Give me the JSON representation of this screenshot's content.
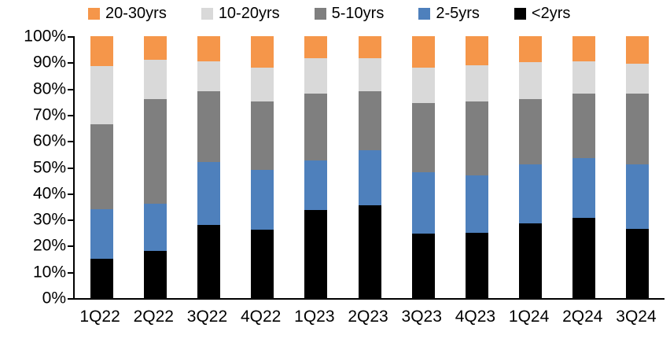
{
  "chart_data": {
    "type": "bar",
    "stacked": true,
    "percent": true,
    "title": "",
    "xlabel": "",
    "ylabel": "",
    "ylim": [
      0,
      100
    ],
    "grid": false,
    "legend_position": "top",
    "legend_order": [
      "20-30yrs",
      "10-20yrs",
      "5-10yrs",
      "2-5yrs",
      "<2yrs"
    ],
    "y_ticks": [
      "0%",
      "10%",
      "20%",
      "30%",
      "40%",
      "50%",
      "60%",
      "70%",
      "80%",
      "90%",
      "100%"
    ],
    "categories": [
      "1Q22",
      "2Q22",
      "3Q22",
      "4Q22",
      "1Q23",
      "2Q23",
      "3Q23",
      "4Q23",
      "1Q24",
      "2Q24",
      "3Q24"
    ],
    "series": [
      {
        "name": "<2yrs",
        "color": "#000000",
        "values": [
          15,
          18,
          28,
          26,
          33.5,
          35.5,
          24.5,
          25,
          28.5,
          30.5,
          26.5
        ]
      },
      {
        "name": "2-5yrs",
        "color": "#4E80BC",
        "values": [
          19,
          18,
          24,
          23,
          19,
          21,
          23.5,
          22,
          22.5,
          23,
          24.5
        ]
      },
      {
        "name": "5-10yrs",
        "color": "#7F7F7F",
        "values": [
          32.5,
          40,
          27,
          26,
          25.5,
          22.5,
          26.5,
          28,
          25,
          24.5,
          27
        ]
      },
      {
        "name": "10-20yrs",
        "color": "#D9D9D9",
        "values": [
          22,
          15,
          11.5,
          13,
          13.5,
          12.5,
          13.5,
          14,
          14,
          12.5,
          11.5
        ]
      },
      {
        "name": "20-30yrs",
        "color": "#F5964A",
        "values": [
          11.5,
          9,
          9.5,
          12,
          8.5,
          8.5,
          12,
          11,
          10,
          9.5,
          10.5
        ]
      }
    ],
    "colors": {
      "axis": "#000000",
      "background": "#FFFFFF"
    }
  }
}
